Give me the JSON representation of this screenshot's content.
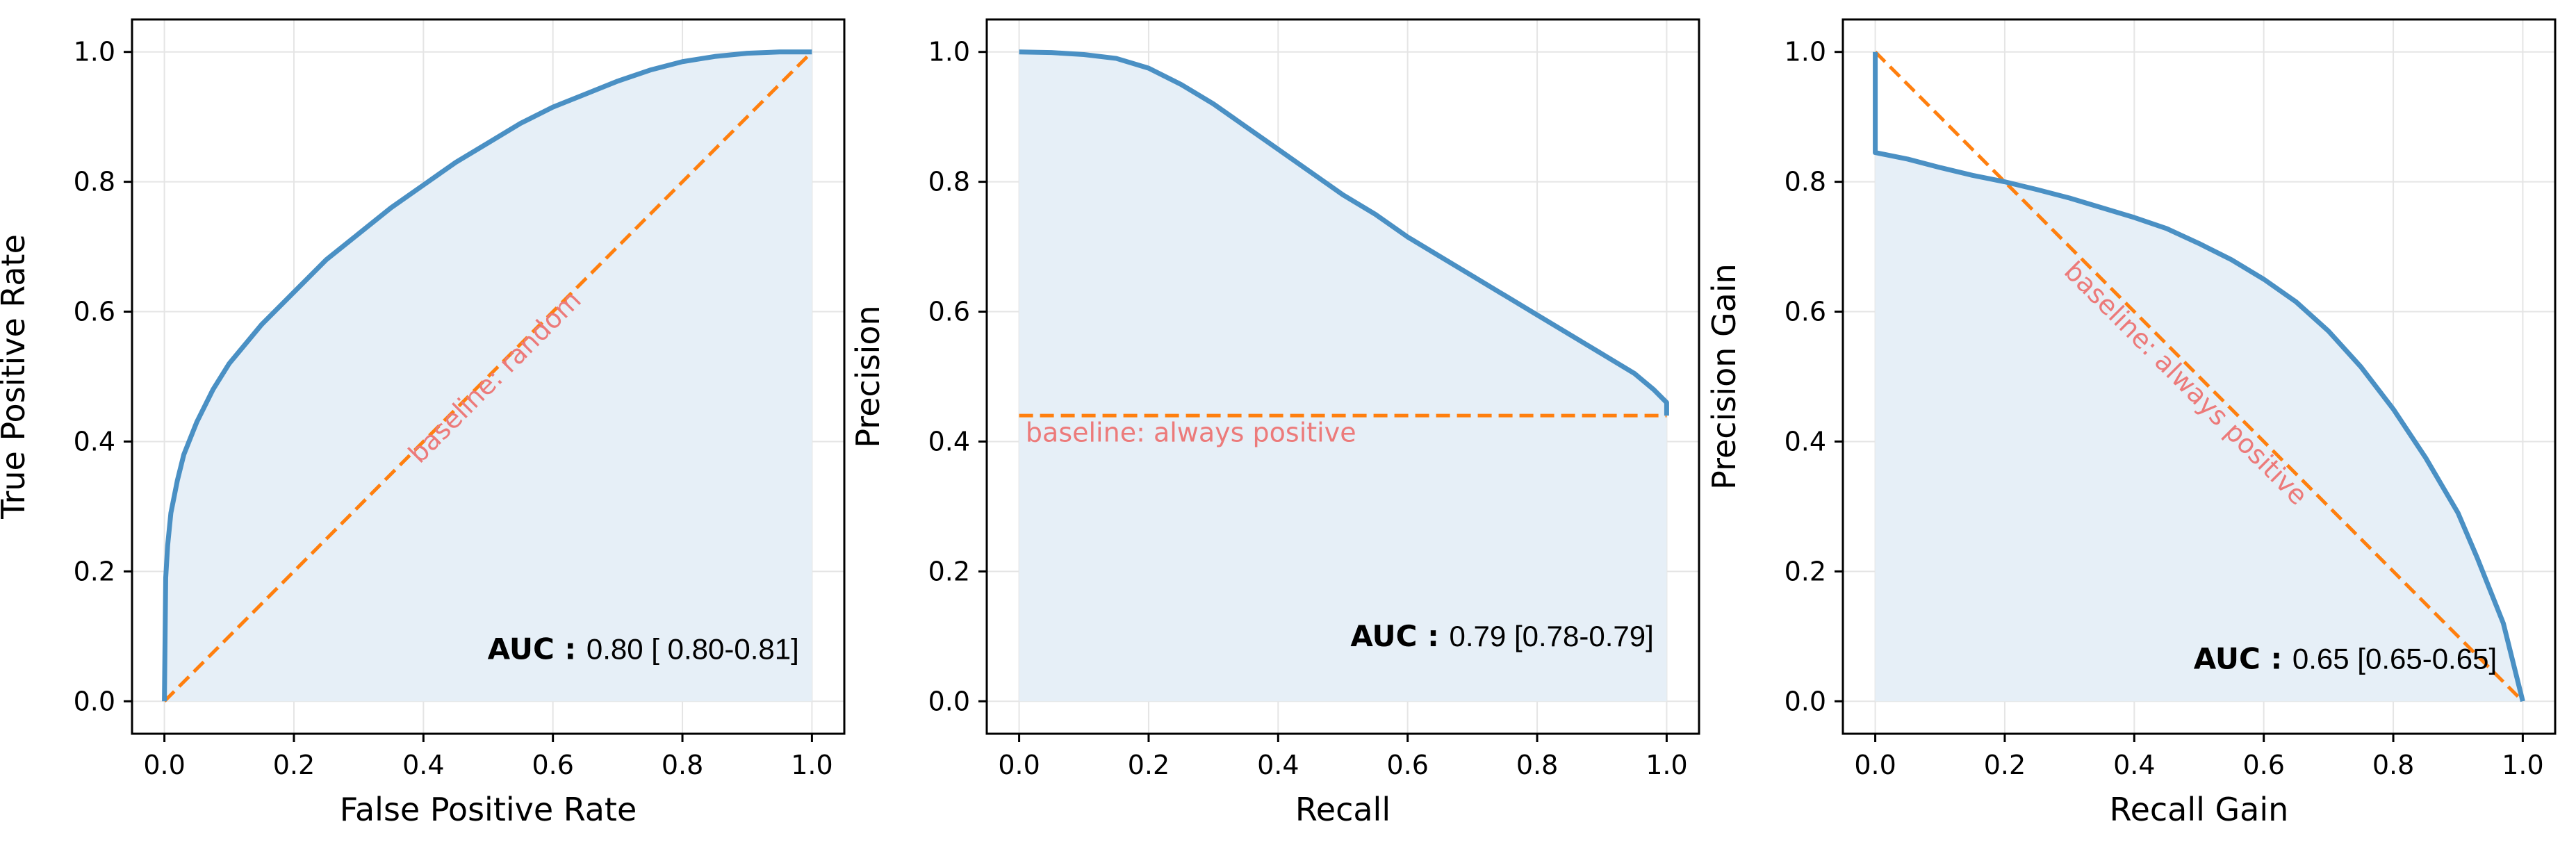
{
  "colors": {
    "curve": "#4a90c4",
    "fill": "#e6eff7",
    "baseline": "#ff7f0e",
    "annotation": "#ec7a7a",
    "grid": "#e5e5e5",
    "frame": "#000000"
  },
  "chart_data": [
    {
      "type": "line",
      "xlabel": "False Positive Rate",
      "ylabel": "True Positive Rate",
      "xlim": [
        -0.05,
        1.05
      ],
      "ylim": [
        -0.05,
        1.05
      ],
      "xticks": [
        "0.0",
        "0.2",
        "0.4",
        "0.6",
        "0.8",
        "1.0"
      ],
      "yticks": [
        "0.0",
        "0.2",
        "0.4",
        "0.6",
        "0.8",
        "1.0"
      ],
      "grid": true,
      "fill_under_curve": true,
      "curve": {
        "x": [
          0,
          0.002,
          0.005,
          0.01,
          0.02,
          0.03,
          0.05,
          0.075,
          0.1,
          0.15,
          0.2,
          0.25,
          0.3,
          0.35,
          0.4,
          0.45,
          0.5,
          0.55,
          0.6,
          0.65,
          0.7,
          0.75,
          0.8,
          0.85,
          0.9,
          0.95,
          1.0
        ],
        "y": [
          0,
          0.19,
          0.24,
          0.29,
          0.34,
          0.38,
          0.43,
          0.48,
          0.52,
          0.58,
          0.63,
          0.68,
          0.72,
          0.76,
          0.795,
          0.83,
          0.86,
          0.89,
          0.915,
          0.935,
          0.955,
          0.972,
          0.985,
          0.993,
          0.998,
          1.0,
          1.0
        ]
      },
      "baseline": {
        "x": [
          0,
          1
        ],
        "y": [
          0,
          1
        ]
      },
      "baseline_label": "baseline: random",
      "auc_label": "AUC :",
      "auc_value": "0.80 [ 0.80-0.81]"
    },
    {
      "type": "line",
      "xlabel": "Recall",
      "ylabel": "Precision",
      "xlim": [
        -0.05,
        1.05
      ],
      "ylim": [
        -0.05,
        1.05
      ],
      "xticks": [
        "0.0",
        "0.2",
        "0.4",
        "0.6",
        "0.8",
        "1.0"
      ],
      "yticks": [
        "0.0",
        "0.2",
        "0.4",
        "0.6",
        "0.8",
        "1.0"
      ],
      "grid": true,
      "fill_under_curve": true,
      "curve": {
        "x": [
          0,
          0.05,
          0.1,
          0.15,
          0.2,
          0.25,
          0.3,
          0.35,
          0.4,
          0.45,
          0.5,
          0.55,
          0.6,
          0.65,
          0.7,
          0.75,
          0.8,
          0.85,
          0.9,
          0.95,
          0.98,
          1.0,
          1.0
        ],
        "y": [
          1.0,
          0.999,
          0.996,
          0.99,
          0.975,
          0.95,
          0.92,
          0.885,
          0.85,
          0.815,
          0.78,
          0.75,
          0.715,
          0.685,
          0.655,
          0.625,
          0.595,
          0.565,
          0.535,
          0.505,
          0.48,
          0.46,
          0.44
        ]
      },
      "baseline": {
        "x": [
          0,
          1
        ],
        "y": [
          0.44,
          0.44
        ]
      },
      "baseline_label": "baseline: always positive",
      "auc_label": "AUC :",
      "auc_value": "0.79 [0.78-0.79]"
    },
    {
      "type": "line",
      "xlabel": "Recall Gain",
      "ylabel": "Precision Gain",
      "xlim": [
        -0.05,
        1.05
      ],
      "ylim": [
        -0.05,
        1.05
      ],
      "xticks": [
        "0.0",
        "0.2",
        "0.4",
        "0.6",
        "0.8",
        "1.0"
      ],
      "yticks": [
        "0.0",
        "0.2",
        "0.4",
        "0.6",
        "0.8",
        "1.0"
      ],
      "grid": true,
      "fill_under_curve": true,
      "curve": {
        "x": [
          0,
          0,
          0.05,
          0.1,
          0.15,
          0.2,
          0.25,
          0.3,
          0.35,
          0.4,
          0.45,
          0.5,
          0.55,
          0.6,
          0.65,
          0.7,
          0.75,
          0.8,
          0.85,
          0.9,
          0.93,
          0.95,
          0.97,
          0.98,
          0.99,
          1.0
        ],
        "y": [
          1.0,
          0.845,
          0.835,
          0.822,
          0.81,
          0.8,
          0.788,
          0.775,
          0.76,
          0.745,
          0.728,
          0.705,
          0.68,
          0.65,
          0.615,
          0.57,
          0.515,
          0.45,
          0.375,
          0.29,
          0.22,
          0.17,
          0.12,
          0.08,
          0.04,
          0.0
        ]
      },
      "baseline": {
        "x": [
          0,
          1
        ],
        "y": [
          1,
          0
        ]
      },
      "baseline_label": "baseline: always positive",
      "auc_label": "AUC :",
      "auc_value": "0.65 [0.65-0.65]"
    }
  ]
}
